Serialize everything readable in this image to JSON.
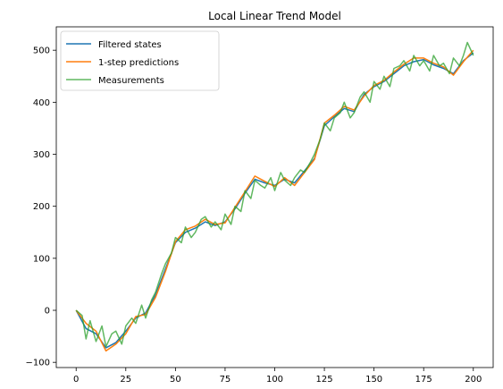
{
  "chart_data": {
    "type": "line",
    "title": "Local Linear Trend Model",
    "xlabel": "",
    "ylabel": "",
    "xlim": [
      -10,
      210
    ],
    "ylim": [
      -110,
      545
    ],
    "xticks": [
      0,
      25,
      50,
      75,
      100,
      125,
      150,
      175,
      200
    ],
    "yticks": [
      -100,
      0,
      100,
      200,
      300,
      400,
      500
    ],
    "grid": false,
    "legend": "top-left",
    "series": [
      {
        "name": "Filtered states",
        "color": "#1f77b4",
        "x": [
          0,
          5,
          10,
          15,
          20,
          25,
          30,
          35,
          40,
          45,
          50,
          55,
          60,
          65,
          70,
          75,
          80,
          85,
          90,
          95,
          100,
          105,
          110,
          115,
          120,
          125,
          130,
          135,
          140,
          145,
          150,
          155,
          160,
          165,
          170,
          175,
          180,
          185,
          190,
          195,
          200
        ],
        "values": [
          0,
          -35,
          -45,
          -72,
          -62,
          -40,
          -15,
          -5,
          30,
          80,
          130,
          150,
          158,
          170,
          163,
          170,
          195,
          225,
          252,
          245,
          240,
          252,
          245,
          268,
          292,
          355,
          372,
          388,
          382,
          415,
          430,
          440,
          455,
          470,
          478,
          482,
          472,
          465,
          455,
          480,
          495
        ]
      },
      {
        "name": "1-step predictions",
        "color": "#ff7f0e",
        "x": [
          0,
          5,
          10,
          15,
          20,
          25,
          30,
          35,
          40,
          45,
          50,
          55,
          60,
          65,
          70,
          75,
          80,
          85,
          90,
          95,
          100,
          105,
          110,
          115,
          120,
          125,
          130,
          135,
          140,
          145,
          150,
          155,
          160,
          165,
          170,
          175,
          180,
          185,
          190,
          195,
          200
        ],
        "values": [
          0,
          -25,
          -40,
          -78,
          -65,
          -45,
          -12,
          -8,
          25,
          75,
          132,
          155,
          162,
          175,
          165,
          168,
          198,
          228,
          258,
          248,
          238,
          255,
          240,
          265,
          290,
          360,
          375,
          392,
          385,
          412,
          432,
          442,
          458,
          473,
          485,
          485,
          475,
          468,
          452,
          478,
          500
        ]
      },
      {
        "name": "Measurements",
        "color": "#2ca02c",
        "x": [
          0,
          3,
          5,
          7,
          10,
          13,
          15,
          18,
          20,
          23,
          25,
          28,
          30,
          33,
          35,
          38,
          40,
          43,
          45,
          48,
          50,
          53,
          55,
          58,
          60,
          63,
          65,
          68,
          70,
          73,
          75,
          78,
          80,
          83,
          85,
          88,
          90,
          93,
          95,
          98,
          100,
          103,
          105,
          108,
          110,
          113,
          115,
          118,
          120,
          123,
          125,
          128,
          130,
          133,
          135,
          138,
          140,
          143,
          145,
          148,
          150,
          153,
          155,
          158,
          160,
          163,
          165,
          168,
          170,
          173,
          175,
          178,
          180,
          183,
          185,
          188,
          190,
          193,
          195,
          197,
          200
        ],
        "values": [
          0,
          -10,
          -55,
          -20,
          -60,
          -30,
          -70,
          -45,
          -40,
          -65,
          -30,
          -15,
          -25,
          10,
          -15,
          20,
          35,
          70,
          90,
          110,
          140,
          130,
          160,
          140,
          150,
          175,
          180,
          160,
          170,
          155,
          185,
          165,
          200,
          190,
          230,
          215,
          250,
          240,
          235,
          255,
          230,
          265,
          250,
          240,
          255,
          270,
          265,
          285,
          300,
          330,
          360,
          345,
          370,
          380,
          400,
          370,
          380,
          410,
          420,
          400,
          440,
          425,
          450,
          430,
          465,
          470,
          480,
          460,
          490,
          470,
          480,
          460,
          490,
          470,
          475,
          455,
          485,
          470,
          490,
          515,
          490
        ]
      }
    ]
  }
}
